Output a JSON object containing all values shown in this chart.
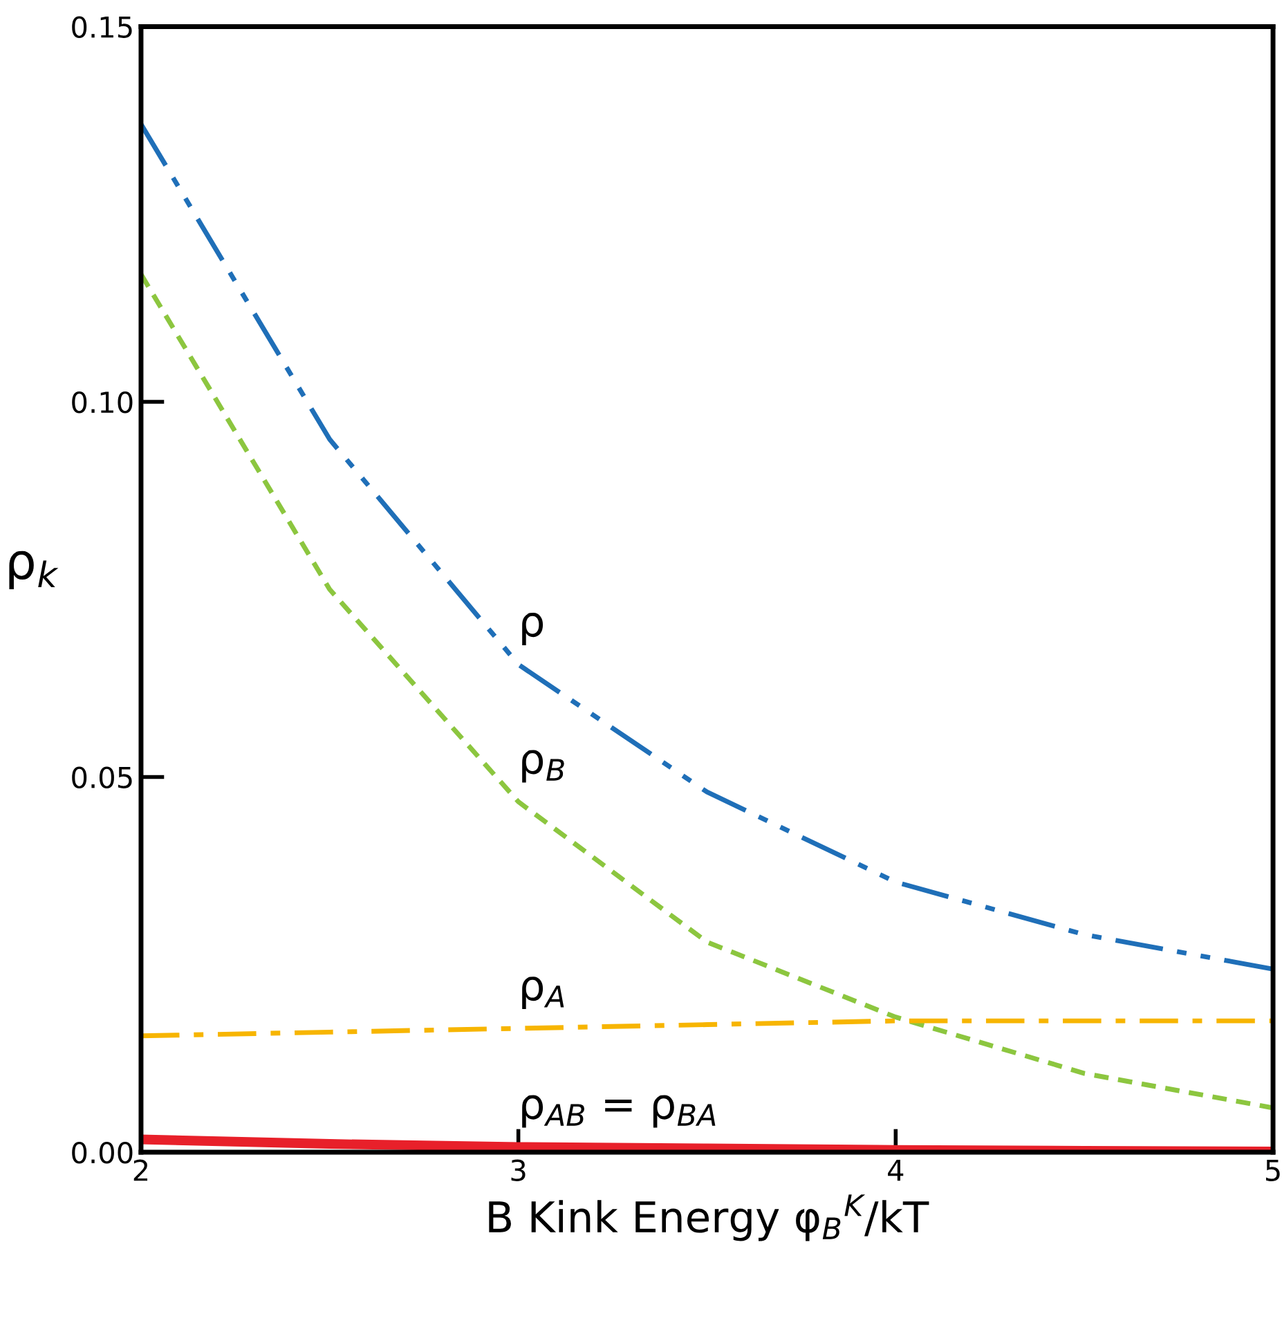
{
  "chart_data": {
    "type": "line",
    "xlabel": "B Kink Energy φ$_{B}$$^{K}$/kT",
    "ylabel": "ρ$_{k}$",
    "x": [
      2,
      2.5,
      3,
      3.5,
      4,
      4.5,
      5
    ],
    "series": [
      {
        "name": "ρ",
        "color": "#1f6fb8",
        "line_style": "dashdotdot",
        "values": [
          0.137,
          0.095,
          0.065,
          0.048,
          0.036,
          0.029,
          0.0244
        ]
      },
      {
        "name": "ρ$_{B}$",
        "color": "#8cc63f",
        "line_style": "dashed",
        "values": [
          0.117,
          0.075,
          0.0467,
          0.028,
          0.018,
          0.0105,
          0.0059
        ]
      },
      {
        "name": "ρ$_{A}$",
        "color": "#f7b500",
        "line_style": "dashdot",
        "values": [
          0.0155,
          0.016,
          0.0165,
          0.017,
          0.0175,
          0.0175,
          0.0175
        ]
      },
      {
        "name": "ρ$_{AB}$ = ρ$_{BA}$",
        "color": "#e8202a",
        "line_style": "solid",
        "values": [
          0.0017,
          0.0011,
          0.0007,
          0.0005,
          0.0003,
          0.0002,
          0.0001
        ]
      }
    ],
    "xlim": [
      2,
      5
    ],
    "ylim": [
      0,
      0.15
    ],
    "xticks": [
      2,
      3,
      4,
      5
    ],
    "yticks": [
      {
        "value": 0,
        "label": "0.00"
      },
      {
        "value": 0.05,
        "label": "0.05"
      },
      {
        "value": 0.1,
        "label": "0.10"
      },
      {
        "value": 0.15,
        "label": "0.15"
      }
    ],
    "grid": false,
    "legend": false,
    "marker": "none"
  }
}
